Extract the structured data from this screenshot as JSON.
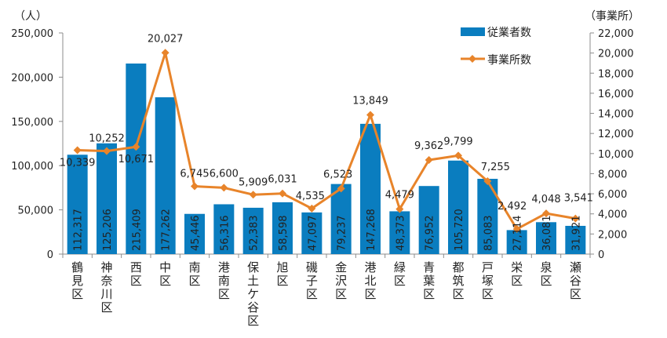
{
  "chart_data": {
    "type": "bar",
    "title": "",
    "categories": [
      "鶴見区",
      "神奈川区",
      "西区",
      "中区",
      "南区",
      "港南区",
      "保土ケ谷区",
      "旭区",
      "磯子区",
      "金沢区",
      "港北区",
      "緑区",
      "青葉区",
      "都筑区",
      "戸塚区",
      "栄区",
      "泉区",
      "瀬谷区"
    ],
    "series": [
      {
        "name": "従業者数",
        "type": "bar",
        "axis": "left",
        "color": "#0a7dbf",
        "values": [
          112317,
          125206,
          215409,
          177262,
          45446,
          56316,
          52383,
          58598,
          47097,
          79237,
          147268,
          48373,
          76952,
          105720,
          85083,
          27114,
          36081,
          31921
        ],
        "labels": [
          "112,317",
          "125,206",
          "215,409",
          "177,262",
          "45,446",
          "56,316",
          "52,383",
          "58,598",
          "47,097",
          "79,237",
          "147,268",
          "48,373",
          "76,952",
          "105,720",
          "85,083",
          "27,114",
          "36,081",
          "31,921"
        ]
      },
      {
        "name": "事業所数",
        "type": "line",
        "axis": "right",
        "color": "#e8842a",
        "values": [
          10339,
          10252,
          10671,
          20027,
          6745,
          6600,
          5909,
          6031,
          4535,
          6523,
          13849,
          4479,
          9362,
          9799,
          7255,
          2492,
          4048,
          3541
        ],
        "labels": [
          "10,339",
          "10,252",
          "10,671",
          "20,027",
          "6,745",
          "6,600",
          "5,909",
          "6,031",
          "4,535",
          "6,523",
          "13,849",
          "4,479",
          "9,362",
          "9,799",
          "7,255",
          "2,492",
          "4,048",
          "3,541"
        ]
      }
    ],
    "y_left": {
      "unit_label": "（人）",
      "range": [
        0,
        250000
      ],
      "ticks": [
        0,
        50000,
        100000,
        150000,
        200000,
        250000
      ],
      "tick_labels": [
        "0",
        "50,000",
        "100,000",
        "150,000",
        "200,000",
        "250,000"
      ]
    },
    "y_right": {
      "unit_label": "（事業所）",
      "range": [
        0,
        22000
      ],
      "ticks": [
        0,
        2000,
        4000,
        6000,
        8000,
        10000,
        12000,
        14000,
        16000,
        18000,
        20000,
        22000
      ],
      "tick_labels": [
        "0",
        "2,000",
        "4,000",
        "6,000",
        "8,000",
        "10,000",
        "12,000",
        "14,000",
        "16,000",
        "18,000",
        "20,000",
        "22,000"
      ]
    },
    "grid": false,
    "legend": {
      "position": "top-right",
      "entries": [
        {
          "label": "従業者数",
          "kind": "bar",
          "color": "#0a7dbf"
        },
        {
          "label": "事業所数",
          "kind": "line-marker",
          "color": "#e8842a"
        }
      ]
    }
  }
}
